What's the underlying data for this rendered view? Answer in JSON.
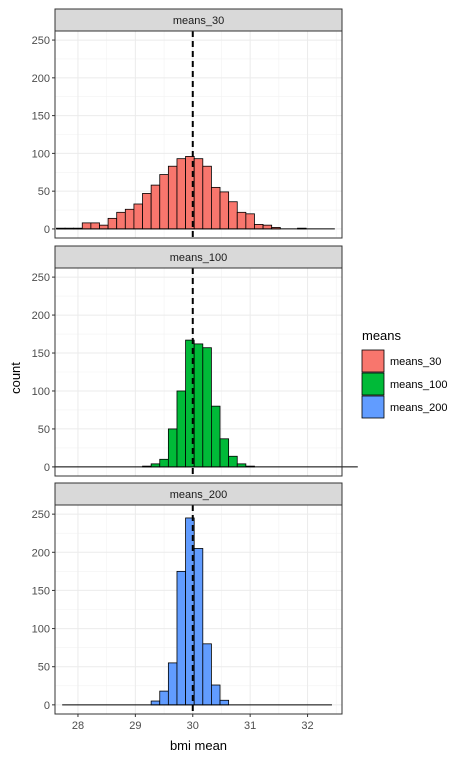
{
  "chart_data": {
    "type": "bar",
    "subtype": "faceted-histogram",
    "xlabel": "bmi mean",
    "ylabel": "count",
    "xlim": [
      27.6,
      32.6
    ],
    "ylim": [
      -12,
      262
    ],
    "x_ticks": [
      28,
      29,
      30,
      31,
      32
    ],
    "y_ticks": [
      0,
      50,
      100,
      150,
      200,
      250
    ],
    "grid": true,
    "reference_line": {
      "x": 30,
      "style": "dashed"
    },
    "legend": {
      "title": "means",
      "placement": "right",
      "entries": [
        "means_30",
        "means_100",
        "means_200"
      ]
    },
    "bin_width": 0.15,
    "facets": [
      {
        "name": "means_30",
        "color": "#F8766D",
        "bins": [
          [
            27.7,
            1
          ],
          [
            27.85,
            1
          ],
          [
            28.0,
            1
          ],
          [
            28.15,
            8
          ],
          [
            28.3,
            8
          ],
          [
            28.45,
            5
          ],
          [
            28.6,
            14
          ],
          [
            28.75,
            22
          ],
          [
            28.9,
            26
          ],
          [
            29.05,
            33
          ],
          [
            29.2,
            47
          ],
          [
            29.35,
            58
          ],
          [
            29.5,
            72
          ],
          [
            29.65,
            83
          ],
          [
            29.8,
            93
          ],
          [
            29.95,
            96
          ],
          [
            30.1,
            93
          ],
          [
            30.25,
            83
          ],
          [
            30.4,
            55
          ],
          [
            30.55,
            49
          ],
          [
            30.7,
            36
          ],
          [
            30.85,
            22
          ],
          [
            31.0,
            20
          ],
          [
            31.15,
            6
          ],
          [
            31.3,
            5
          ],
          [
            31.45,
            2
          ],
          [
            31.6,
            0
          ],
          [
            31.75,
            0
          ],
          [
            31.9,
            1
          ],
          [
            32.05,
            0
          ],
          [
            32.2,
            0
          ]
        ]
      },
      {
        "name": "means_100",
        "color": "#00BA38",
        "bins": [
          [
            29.2,
            1
          ],
          [
            29.35,
            4
          ],
          [
            29.5,
            10
          ],
          [
            29.65,
            50
          ],
          [
            29.8,
            100
          ],
          [
            29.95,
            167
          ],
          [
            30.1,
            162
          ],
          [
            30.25,
            157
          ],
          [
            30.4,
            80
          ],
          [
            30.55,
            37
          ],
          [
            30.7,
            14
          ],
          [
            30.85,
            4
          ],
          [
            31.0,
            1
          ]
        ]
      },
      {
        "name": "means_200",
        "color": "#619CFF",
        "bins": [
          [
            29.35,
            5
          ],
          [
            29.5,
            18
          ],
          [
            29.65,
            55
          ],
          [
            29.8,
            175
          ],
          [
            29.95,
            245
          ],
          [
            30.1,
            205
          ],
          [
            30.25,
            80
          ],
          [
            30.4,
            26
          ],
          [
            30.55,
            6
          ]
        ]
      }
    ]
  }
}
